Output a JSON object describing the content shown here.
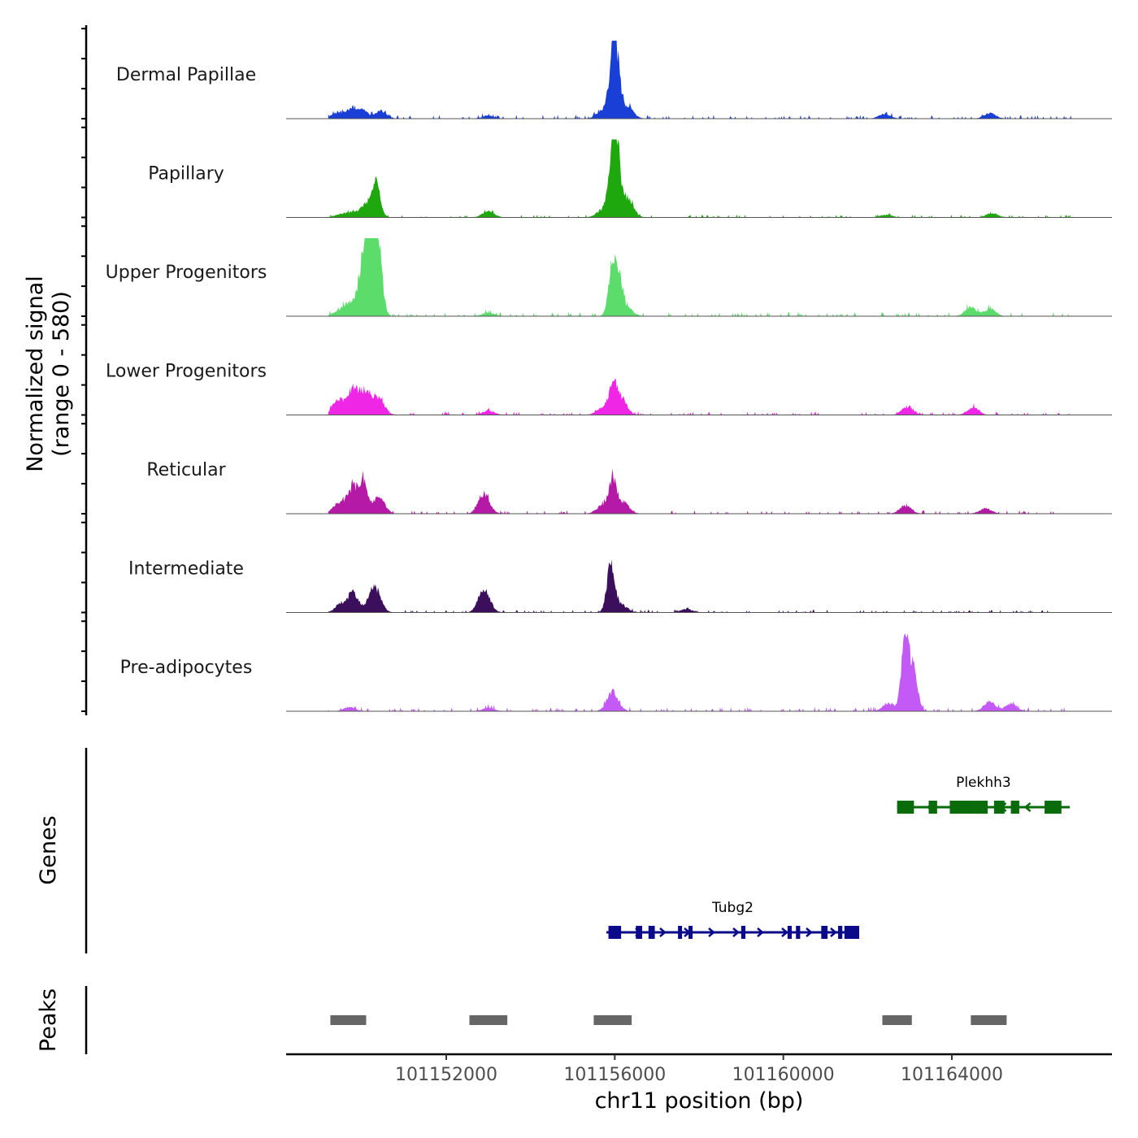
{
  "chart_data": {
    "type": "area",
    "title": "",
    "ylabel": "Normalized signal",
    "ylabel_range": "(range 0 - 580)",
    "xlabel": "chr11 position (bp)",
    "xlim": [
      101148200,
      101167800
    ],
    "x_ticks": [
      101152000,
      101156000,
      101160000,
      101164000
    ],
    "x_tick_labels": [
      "101152000",
      "101156000",
      "101160000",
      "101164000"
    ],
    "signal_range": [
      0,
      580
    ],
    "tracks": [
      {
        "name": "Dermal Papillae",
        "color": "#1a3fd6",
        "peaks": [
          [
            101149400,
            40
          ],
          [
            101149750,
            70
          ],
          [
            101150000,
            55
          ],
          [
            101150450,
            55
          ],
          [
            101153000,
            22
          ],
          [
            101155700,
            60
          ],
          [
            101155950,
            375
          ],
          [
            101156050,
            300
          ],
          [
            101156300,
            90
          ],
          [
            101162400,
            35
          ],
          [
            101164900,
            40
          ]
        ],
        "background": 10
      },
      {
        "name": "Papillary",
        "color": "#1fa80d",
        "peaks": [
          [
            101149500,
            25
          ],
          [
            101149800,
            40
          ],
          [
            101150150,
            110
          ],
          [
            101150350,
            230
          ],
          [
            101153000,
            45
          ],
          [
            101155700,
            55
          ],
          [
            101155950,
            470
          ],
          [
            101156050,
            360
          ],
          [
            101156300,
            140
          ],
          [
            101162450,
            20
          ],
          [
            101164950,
            30
          ]
        ],
        "background": 8
      },
      {
        "name": "Upper Progenitors",
        "color": "#5cdc6a",
        "peaks": [
          [
            101149450,
            40
          ],
          [
            101149750,
            110
          ],
          [
            101150000,
            280
          ],
          [
            101150150,
            580
          ],
          [
            101150250,
            580
          ],
          [
            101150400,
            420
          ],
          [
            101153000,
            25
          ],
          [
            101155950,
            385
          ],
          [
            101156100,
            230
          ],
          [
            101156300,
            60
          ],
          [
            101164450,
            65
          ],
          [
            101164900,
            55
          ]
        ],
        "background": 12
      },
      {
        "name": "Lower Progenitors",
        "color": "#f026e6",
        "peaks": [
          [
            101149450,
            110
          ],
          [
            101149800,
            190
          ],
          [
            101150100,
            160
          ],
          [
            101150400,
            120
          ],
          [
            101153000,
            30
          ],
          [
            101155700,
            50
          ],
          [
            101155950,
            220
          ],
          [
            101156150,
            120
          ],
          [
            101162950,
            60
          ],
          [
            101164500,
            50
          ]
        ],
        "background": 10
      },
      {
        "name": "Reticular",
        "color": "#b51aa6",
        "peaks": [
          [
            101149450,
            80
          ],
          [
            101149800,
            200
          ],
          [
            101150050,
            220
          ],
          [
            101150400,
            120
          ],
          [
            101152900,
            145
          ],
          [
            101155700,
            60
          ],
          [
            101155950,
            260
          ],
          [
            101156200,
            80
          ],
          [
            101162900,
            60
          ],
          [
            101164800,
            40
          ]
        ],
        "background": 10
      },
      {
        "name": "Intermediate",
        "color": "#3b0f5c",
        "peaks": [
          [
            101149500,
            60
          ],
          [
            101149800,
            140
          ],
          [
            101150300,
            200
          ],
          [
            101152900,
            170
          ],
          [
            101155900,
            330
          ],
          [
            101156150,
            60
          ],
          [
            101157700,
            25
          ]
        ],
        "background": 8
      },
      {
        "name": "Pre-adipocytes",
        "color": "#c35af5",
        "peaks": [
          [
            101149700,
            30
          ],
          [
            101153000,
            25
          ],
          [
            101155950,
            140
          ],
          [
            101162500,
            60
          ],
          [
            101162900,
            560
          ],
          [
            101163100,
            260
          ],
          [
            101164900,
            75
          ],
          [
            101165400,
            55
          ]
        ],
        "background": 12
      }
    ]
  },
  "genes_panel": {
    "label": "Genes",
    "genes": [
      {
        "name": "Tubg2",
        "color": "#0a0a8a",
        "strand": "+",
        "start": 101155800,
        "end": 101161800,
        "exons": [
          [
            101155850,
            101156150
          ],
          [
            101156500,
            101156650
          ],
          [
            101156800,
            101156950
          ],
          [
            101157500,
            101157550
          ],
          [
            101157750,
            101157800
          ],
          [
            101159000,
            101159100
          ],
          [
            101160100,
            101160200
          ],
          [
            101160300,
            101160400
          ],
          [
            101160900,
            101161050
          ],
          [
            101161300,
            101161400
          ],
          [
            101161450,
            101161800
          ]
        ]
      },
      {
        "name": "Plekhh3",
        "color": "#0a6b0a",
        "strand": "-",
        "start": 101162700,
        "end": 101166800,
        "exons": [
          [
            101162700,
            101163100
          ],
          [
            101163450,
            101163650
          ],
          [
            101163950,
            101164550
          ],
          [
            101164550,
            101164850
          ],
          [
            101165000,
            101165250
          ],
          [
            101165400,
            101165600
          ],
          [
            101166200,
            101166600
          ]
        ]
      }
    ]
  },
  "peaks_panel": {
    "label": "Peaks",
    "color": "#666666",
    "regions": [
      [
        101149250,
        101150100
      ],
      [
        101152550,
        101153450
      ],
      [
        101155500,
        101156400
      ],
      [
        101162350,
        101163050
      ],
      [
        101164450,
        101165300
      ]
    ]
  }
}
